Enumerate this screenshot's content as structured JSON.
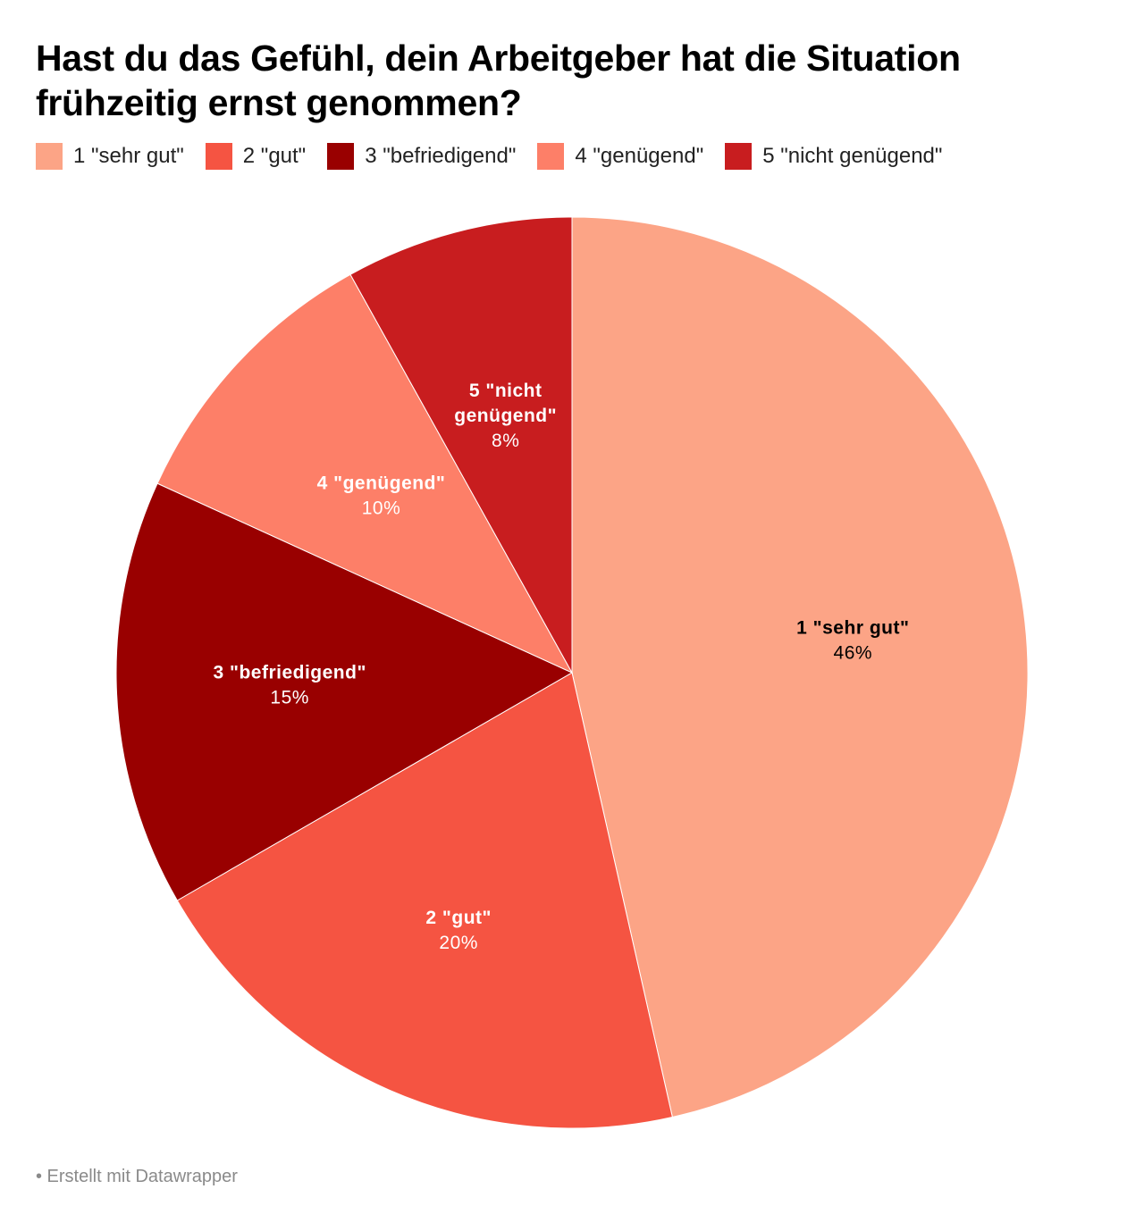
{
  "chart_data": {
    "type": "pie",
    "title": "Hast du das Gefühl, dein Arbeitgeber hat die Situation frühzeitig ernst genommen?",
    "legend_position": "top",
    "slices": [
      {
        "label": "1 \"sehr gut\"",
        "label_lines": [
          "1 \"sehr gut\""
        ],
        "value": 46,
        "value_label": "46%",
        "color": "#fca486",
        "text_color": "#000000"
      },
      {
        "label": "2 \"gut\"",
        "label_lines": [
          "2 \"gut\""
        ],
        "value": 20,
        "value_label": "20%",
        "color": "#f55442",
        "text_color": "#ffffff"
      },
      {
        "label": "3 \"befriedigend\"",
        "label_lines": [
          "3 \"befriedigend\""
        ],
        "value": 15,
        "value_label": "15%",
        "color": "#990000",
        "text_color": "#ffffff"
      },
      {
        "label": "4 \"genügend\"",
        "label_lines": [
          "4 \"genügend\""
        ],
        "value": 10,
        "value_label": "10%",
        "color": "#fd7f68",
        "text_color": "#ffffff"
      },
      {
        "label": "5 \"nicht genügend\"",
        "label_lines": [
          "5 \"nicht",
          "genügend\""
        ],
        "value": 8,
        "value_label": "8%",
        "color": "#c81d1f",
        "text_color": "#ffffff"
      }
    ]
  },
  "footer": {
    "text": "• Erstellt mit Datawrapper"
  }
}
